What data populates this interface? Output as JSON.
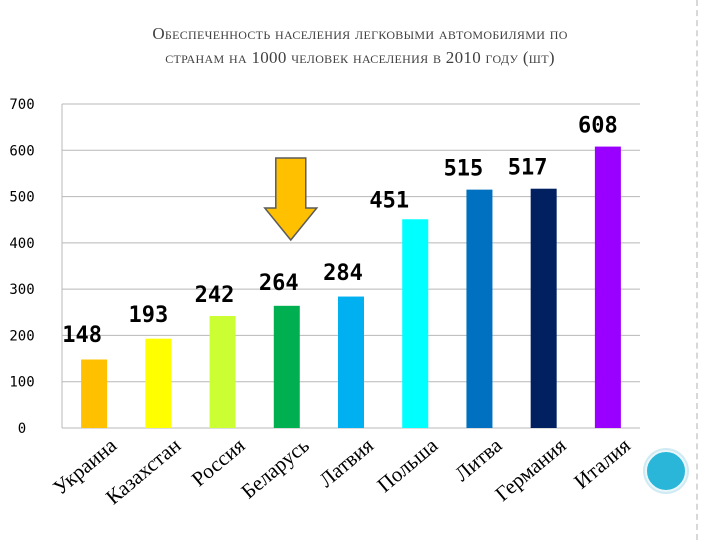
{
  "title_line1": "Обеспеченность населения легковыми автомобилями  по",
  "title_line2": "странам на 1000 человек населения  в 2010 году (шт)",
  "chart_data": {
    "type": "bar",
    "title": "Обеспеченность населения легковыми автомобилями по странам на 1000 человек населения в 2010 году (шт)",
    "categories": [
      "Украина",
      "Казахстан",
      "Россия",
      "Беларусь",
      "Латвия",
      "Польша",
      "Литва",
      "Германия",
      "Италия"
    ],
    "values": [
      148,
      193,
      242,
      264,
      284,
      451,
      515,
      517,
      608
    ],
    "colors": [
      "#ffc000",
      "#ffff00",
      "#ccff33",
      "#00b050",
      "#00b0f0",
      "#00ffff",
      "#0070c0",
      "#002060",
      "#9900ff"
    ],
    "ylim": [
      0,
      700
    ],
    "yticks": [
      0,
      100,
      200,
      300,
      400,
      500,
      600,
      700
    ],
    "grid": true,
    "legend": "none",
    "annotation": "arrow-down-over-Беларусь",
    "arrow_color": "#ffc000"
  }
}
